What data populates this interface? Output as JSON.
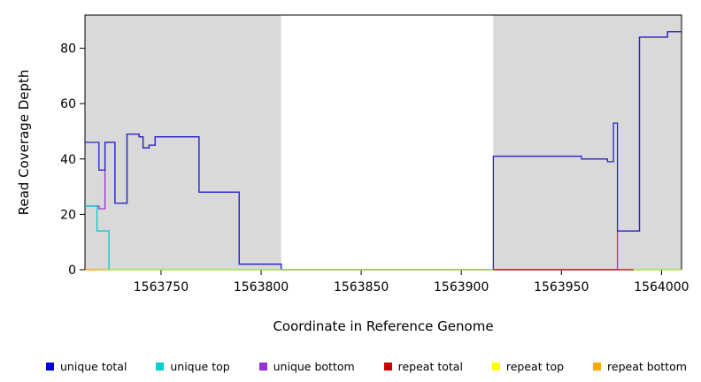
{
  "chart_data": {
    "type": "line",
    "title": "",
    "xlabel": "Coordinate in Reference Genome",
    "ylabel": "Read Coverage Depth",
    "xlim": [
      1563712,
      1564010
    ],
    "ylim": [
      0,
      92
    ],
    "xticks": [
      1563750,
      1563800,
      1563850,
      1563900,
      1563950,
      1564000
    ],
    "yticks": [
      0,
      20,
      40,
      60,
      80
    ],
    "grid": false,
    "legend_position": "bottom",
    "shade_color": "#d9d9d9",
    "shaded_regions": [
      [
        1563712,
        1563810
      ],
      [
        1563916,
        1564010
      ]
    ],
    "series": [
      {
        "name": "unique bottom",
        "color": "#9932CC",
        "opacity": 1,
        "step_points": [
          [
            1563712,
            23
          ],
          [
            1563719,
            22
          ],
          [
            1563722,
            46
          ],
          [
            1563727,
            24
          ],
          [
            1563733,
            49
          ],
          [
            1563739,
            48
          ],
          [
            1563741,
            44
          ],
          [
            1563744,
            45
          ],
          [
            1563747,
            48
          ],
          [
            1563769,
            28
          ],
          [
            1563789,
            2
          ],
          [
            1563810,
            0
          ],
          [
            1563978,
            14
          ],
          [
            1563989,
            84
          ],
          [
            1564003,
            86
          ],
          [
            1564010,
            86
          ]
        ]
      },
      {
        "name": "unique total",
        "color": "#2424CD",
        "opacity": 1,
        "step_points": [
          [
            1563712,
            46
          ],
          [
            1563719,
            36
          ],
          [
            1563722,
            46
          ],
          [
            1563727,
            24
          ],
          [
            1563733,
            49
          ],
          [
            1563739,
            48
          ],
          [
            1563741,
            44
          ],
          [
            1563744,
            45
          ],
          [
            1563747,
            48
          ],
          [
            1563769,
            28
          ],
          [
            1563789,
            2
          ],
          [
            1563810,
            0
          ],
          [
            1563916,
            41
          ],
          [
            1563960,
            40
          ],
          [
            1563973,
            39
          ],
          [
            1563976,
            53
          ],
          [
            1563978,
            14
          ],
          [
            1563989,
            84
          ],
          [
            1564003,
            86
          ],
          [
            1564010,
            86
          ]
        ]
      },
      {
        "name": "unique top",
        "color": "#00CDCD",
        "opacity": 1,
        "step_points": [
          [
            1563712,
            23
          ],
          [
            1563718,
            14
          ],
          [
            1563724,
            0
          ],
          [
            1564010,
            0
          ]
        ]
      },
      {
        "name": "repeat top",
        "color": "#E8E800",
        "opacity": 0.75,
        "step_points": [
          [
            1563712,
            0
          ],
          [
            1564010,
            0
          ]
        ]
      },
      {
        "name": "repeat total",
        "color": "#CD0000",
        "opacity": 1,
        "step_points": [
          [
            1563916,
            0
          ],
          [
            1563986,
            0
          ]
        ]
      },
      {
        "name": "repeat bottom",
        "color": "#FF9900",
        "opacity": 1,
        "step_points": [
          [
            1563712,
            0
          ],
          [
            1563719,
            0
          ]
        ]
      }
    ]
  },
  "legend": {
    "items": [
      {
        "label": "unique total",
        "color": "#0000CD"
      },
      {
        "label": "unique top",
        "color": "#00CDCD"
      },
      {
        "label": "unique bottom",
        "color": "#9932CC"
      },
      {
        "label": "repeat total",
        "color": "#CD0000"
      },
      {
        "label": "repeat top",
        "color": "#FFFF00"
      },
      {
        "label": "repeat bottom",
        "color": "#FFA500"
      }
    ]
  }
}
